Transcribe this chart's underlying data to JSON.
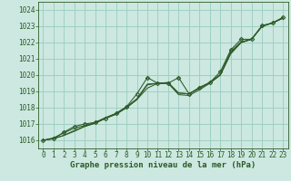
{
  "xlabel": "Graphe pression niveau de la mer (hPa)",
  "xlim": [
    -0.5,
    23.5
  ],
  "ylim": [
    1015.5,
    1024.5
  ],
  "yticks": [
    1016,
    1017,
    1018,
    1019,
    1020,
    1021,
    1022,
    1023,
    1024
  ],
  "xticks": [
    0,
    1,
    2,
    3,
    4,
    5,
    6,
    7,
    8,
    9,
    10,
    11,
    12,
    13,
    14,
    15,
    16,
    17,
    18,
    19,
    20,
    21,
    22,
    23
  ],
  "background_color": "#cce8e0",
  "grid_color": "#99ccc0",
  "line_color": "#2d5a27",
  "marker_color": "#2d5a27",
  "series1": [
    1016.0,
    1016.1,
    1016.3,
    1016.6,
    1016.85,
    1017.05,
    1017.35,
    1017.6,
    1018.0,
    1018.5,
    1019.4,
    1019.5,
    1019.5,
    1018.8,
    1018.75,
    1019.1,
    1019.5,
    1020.0,
    1021.4,
    1022.0,
    1022.2,
    1023.0,
    1023.2,
    1023.5
  ],
  "series2": [
    1016.0,
    1016.1,
    1016.3,
    1016.55,
    1016.85,
    1017.05,
    1017.35,
    1017.6,
    1018.0,
    1018.5,
    1019.2,
    1019.5,
    1019.5,
    1018.9,
    1018.85,
    1019.2,
    1019.55,
    1020.0,
    1021.3,
    1022.0,
    1022.2,
    1023.0,
    1023.2,
    1023.5
  ],
  "series3": [
    1016.0,
    1016.15,
    1016.45,
    1016.75,
    1016.9,
    1017.1,
    1017.4,
    1017.65,
    1018.05,
    1018.55,
    1019.45,
    1019.5,
    1019.55,
    1018.9,
    1018.85,
    1019.2,
    1019.55,
    1020.05,
    1021.45,
    1022.05,
    1022.2,
    1023.0,
    1023.2,
    1023.5
  ],
  "series4": [
    1016.0,
    1016.1,
    1016.5,
    1016.85,
    1017.0,
    1017.1,
    1017.35,
    1017.65,
    1018.05,
    1018.85,
    1019.85,
    1019.5,
    1019.5,
    1019.85,
    1018.85,
    1019.25,
    1019.55,
    1020.2,
    1021.55,
    1022.2,
    1022.2,
    1023.05,
    1023.2,
    1023.55
  ],
  "tick_fontsize": 5.5,
  "label_fontsize": 6.5
}
